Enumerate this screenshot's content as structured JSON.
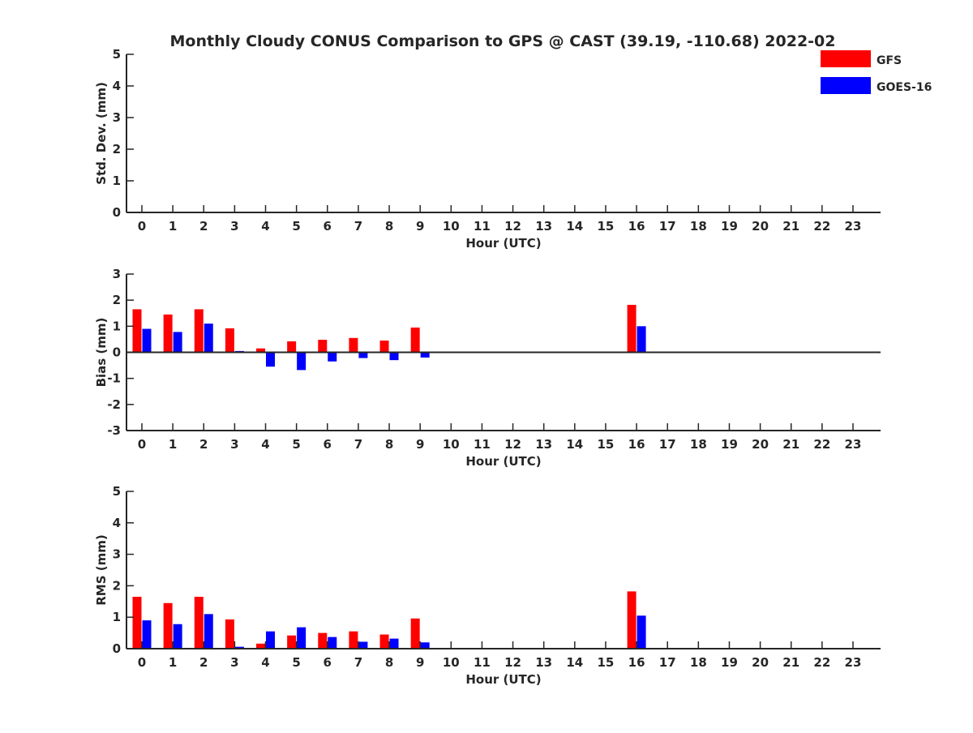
{
  "figure": {
    "title": "Monthly Cloudy CONUS Comparison to GPS @ CAST (39.19, -110.68) 2022-02"
  },
  "legend": {
    "placement": "top-right",
    "entries": [
      {
        "label": "GFS",
        "color": "#ff0000"
      },
      {
        "label": "GOES-16",
        "color": "#0000ff"
      }
    ]
  },
  "chart_data": [
    {
      "type": "bar",
      "id": "std",
      "xlabel": "Hour (UTC)",
      "ylabel": "Std. Dev. (mm)",
      "ylim": [
        0,
        5
      ],
      "yticks": [
        0,
        1,
        2,
        3,
        4,
        5
      ],
      "categories": [
        "0",
        "1",
        "2",
        "3",
        "4",
        "5",
        "6",
        "7",
        "8",
        "9",
        "10",
        "11",
        "12",
        "13",
        "14",
        "15",
        "16",
        "17",
        "18",
        "19",
        "20",
        "21",
        "22",
        "23"
      ],
      "series": [
        {
          "name": "GFS",
          "color": "#ff0000",
          "values": [
            null,
            null,
            null,
            null,
            null,
            null,
            null,
            null,
            null,
            null,
            null,
            null,
            null,
            null,
            null,
            null,
            null,
            null,
            null,
            null,
            null,
            null,
            null,
            null
          ]
        },
        {
          "name": "GOES-16",
          "color": "#0000ff",
          "values": [
            null,
            null,
            null,
            null,
            null,
            null,
            null,
            null,
            null,
            null,
            null,
            null,
            null,
            null,
            null,
            null,
            null,
            null,
            null,
            null,
            null,
            null,
            null,
            null
          ]
        }
      ]
    },
    {
      "type": "bar",
      "id": "bias",
      "xlabel": "Hour (UTC)",
      "ylabel": "Bias (mm)",
      "ylim": [
        -3,
        3
      ],
      "yticks": [
        -3,
        -2,
        -1,
        0,
        1,
        2,
        3
      ],
      "zero_line": true,
      "categories": [
        "0",
        "1",
        "2",
        "3",
        "4",
        "5",
        "6",
        "7",
        "8",
        "9",
        "10",
        "11",
        "12",
        "13",
        "14",
        "15",
        "16",
        "17",
        "18",
        "19",
        "20",
        "21",
        "22",
        "23"
      ],
      "series": [
        {
          "name": "GFS",
          "color": "#ff0000",
          "values": [
            1.65,
            1.45,
            1.65,
            0.92,
            0.15,
            0.42,
            0.48,
            0.55,
            0.45,
            0.95,
            null,
            null,
            null,
            null,
            null,
            null,
            1.82,
            null,
            null,
            null,
            null,
            null,
            null,
            null
          ]
        },
        {
          "name": "GOES-16",
          "color": "#0000ff",
          "values": [
            0.9,
            0.78,
            1.1,
            0.05,
            -0.55,
            -0.68,
            -0.35,
            -0.22,
            -0.3,
            -0.2,
            null,
            null,
            null,
            null,
            null,
            null,
            1.0,
            null,
            null,
            null,
            null,
            null,
            null,
            null
          ]
        }
      ]
    },
    {
      "type": "bar",
      "id": "rms",
      "xlabel": "Hour (UTC)",
      "ylabel": "RMS (mm)",
      "ylim": [
        0,
        5
      ],
      "yticks": [
        0,
        1,
        2,
        3,
        4,
        5
      ],
      "categories": [
        "0",
        "1",
        "2",
        "3",
        "4",
        "5",
        "6",
        "7",
        "8",
        "9",
        "10",
        "11",
        "12",
        "13",
        "14",
        "15",
        "16",
        "17",
        "18",
        "19",
        "20",
        "21",
        "22",
        "23"
      ],
      "series": [
        {
          "name": "GFS",
          "color": "#ff0000",
          "values": [
            1.65,
            1.45,
            1.65,
            0.93,
            0.16,
            0.42,
            0.5,
            0.55,
            0.45,
            0.96,
            null,
            null,
            null,
            null,
            null,
            null,
            1.82,
            null,
            null,
            null,
            null,
            null,
            null,
            null
          ]
        },
        {
          "name": "GOES-16",
          "color": "#0000ff",
          "values": [
            0.9,
            0.78,
            1.1,
            0.06,
            0.55,
            0.68,
            0.37,
            0.22,
            0.32,
            0.2,
            null,
            null,
            null,
            null,
            null,
            null,
            1.05,
            null,
            null,
            null,
            null,
            null,
            null,
            null
          ]
        }
      ]
    }
  ]
}
